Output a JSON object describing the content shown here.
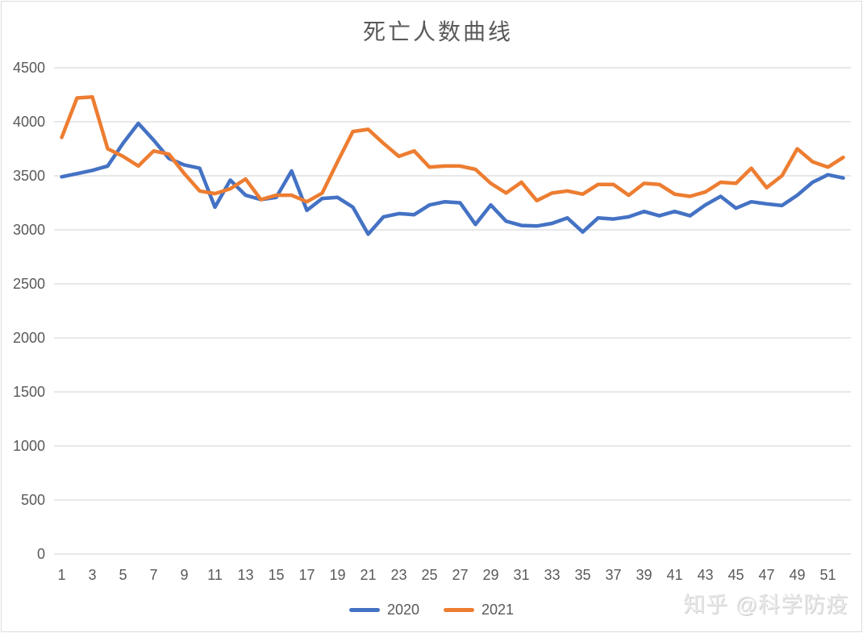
{
  "page": {
    "watermark": "知乎 @科学防疫"
  },
  "chart_data": {
    "type": "line",
    "title": "死亡人数曲线",
    "xlabel": "",
    "ylabel": "",
    "ylim": [
      0,
      4500
    ],
    "y_tick_step": 500,
    "grid": true,
    "legend_position": "bottom",
    "axis_label_color": "#595959",
    "gridline_color": "#d9d9d9",
    "x": [
      1,
      2,
      3,
      4,
      5,
      6,
      7,
      8,
      9,
      10,
      11,
      12,
      13,
      14,
      15,
      16,
      17,
      18,
      19,
      20,
      21,
      22,
      23,
      24,
      25,
      26,
      27,
      28,
      29,
      30,
      31,
      32,
      33,
      34,
      35,
      36,
      37,
      38,
      39,
      40,
      41,
      42,
      43,
      44,
      45,
      46,
      47,
      48,
      49,
      50,
      51,
      52
    ],
    "x_tick_labels": [
      1,
      3,
      5,
      7,
      9,
      11,
      13,
      15,
      17,
      19,
      21,
      23,
      25,
      27,
      29,
      31,
      33,
      35,
      37,
      39,
      41,
      43,
      45,
      47,
      49,
      51
    ],
    "series": [
      {
        "name": "2020",
        "color": "#4472C4",
        "values": [
          3490,
          3520,
          3550,
          3590,
          3800,
          3985,
          3830,
          3660,
          3600,
          3570,
          3210,
          3460,
          3320,
          3280,
          3300,
          3545,
          3180,
          3290,
          3300,
          3210,
          2960,
          3120,
          3150,
          3140,
          3230,
          3260,
          3250,
          3050,
          3230,
          3080,
          3040,
          3035,
          3060,
          3110,
          2980,
          3110,
          3100,
          3120,
          3170,
          3130,
          3170,
          3130,
          3230,
          3310,
          3200,
          3260,
          3240,
          3225,
          3320,
          3440,
          3510,
          3480
        ]
      },
      {
        "name": "2021",
        "color": "#ED7D31",
        "values": [
          3855,
          4220,
          4230,
          3750,
          3680,
          3590,
          3730,
          3700,
          3520,
          3360,
          3335,
          3380,
          3470,
          3280,
          3320,
          3320,
          3260,
          3340,
          3630,
          3910,
          3930,
          3800,
          3680,
          3730,
          3580,
          3590,
          3590,
          3560,
          3430,
          3340,
          3440,
          3270,
          3340,
          3360,
          3330,
          3420,
          3420,
          3320,
          3430,
          3420,
          3330,
          3310,
          3350,
          3440,
          3430,
          3570,
          3390,
          3500,
          3750,
          3630,
          3580,
          3670
        ]
      }
    ]
  }
}
